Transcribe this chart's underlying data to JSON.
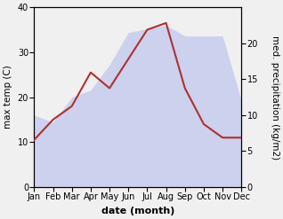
{
  "months": [
    "Jan",
    "Feb",
    "Mar",
    "Apr",
    "May",
    "Jun",
    "Jul",
    "Aug",
    "Sep",
    "Oct",
    "Nov",
    "Dec"
  ],
  "month_positions": [
    0,
    1,
    2,
    3,
    4,
    5,
    6,
    7,
    8,
    9,
    10,
    11
  ],
  "max_temp": [
    10.5,
    15.0,
    18.0,
    25.5,
    22.0,
    28.5,
    35.0,
    36.5,
    22.0,
    14.0,
    11.0,
    11.0
  ],
  "precipitation": [
    10.0,
    9.0,
    12.5,
    13.5,
    17.0,
    21.5,
    22.0,
    22.5,
    21.0,
    21.0,
    21.0,
    12.0
  ],
  "temp_ylim": [
    0,
    40
  ],
  "precip_ylim": [
    0,
    25
  ],
  "precip_scale_factor": 1.6,
  "precip_color": "#b0b8ee",
  "precip_alpha": 0.55,
  "temp_line_color": "#b03030",
  "temp_linewidth": 1.5,
  "xlabel": "date (month)",
  "ylabel_left": "max temp (C)",
  "ylabel_right": "med. precipitation (kg/m2)",
  "xlabel_fontsize": 8,
  "ylabel_fontsize": 7.5,
  "tick_fontsize": 7,
  "right_yticks": [
    0,
    5,
    10,
    15,
    20
  ],
  "left_yticks": [
    0,
    10,
    20,
    30,
    40
  ],
  "background_color": "#f0f0f0"
}
